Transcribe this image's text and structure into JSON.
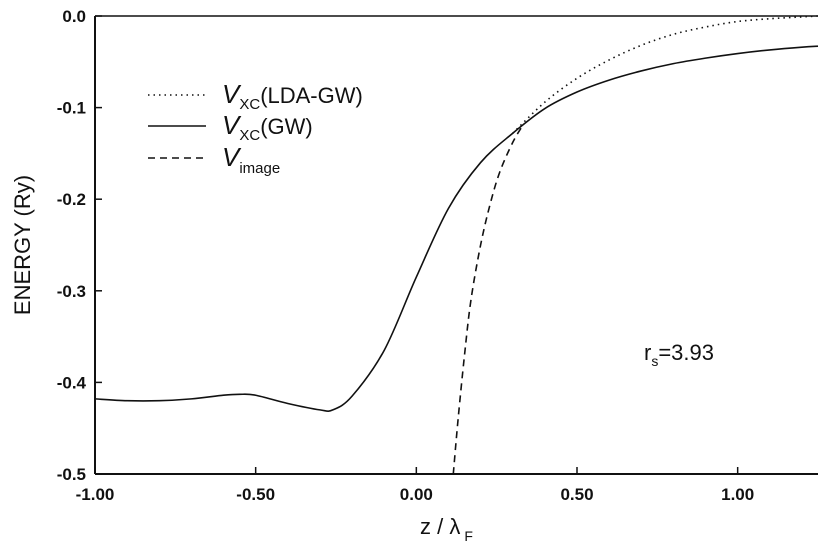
{
  "chart_data": {
    "type": "line",
    "xlabel": {
      "main": "z / λ",
      "sub": "F"
    },
    "ylabel": "ENERGY (Ry)",
    "xlim": [
      -1.0,
      1.25
    ],
    "ylim": [
      -0.5,
      0.0
    ],
    "x_ticks": [
      -1.0,
      -0.5,
      0.0,
      0.5,
      1.0
    ],
    "x_tick_labels": [
      "-1.00",
      "-0.50",
      "0.00",
      "0.50",
      "1.00"
    ],
    "y_ticks": [
      0.0,
      -0.1,
      -0.2,
      -0.3,
      -0.4,
      -0.5
    ],
    "y_tick_labels": [
      "0.0",
      "-0.1",
      "-0.2",
      "-0.3",
      "-0.4",
      "-0.5"
    ],
    "grid": false,
    "legend_position": "top-left",
    "annotation": {
      "main": "r",
      "sub": "s",
      "rest": "=3.93"
    },
    "series": [
      {
        "name": {
          "main": "V",
          "sub": "XC",
          "rest": "(LDA-GW)"
        },
        "style": "dotted",
        "x": [
          0.3,
          0.4,
          0.5,
          0.6,
          0.7,
          0.8,
          0.9,
          1.0,
          1.1,
          1.2,
          1.25
        ],
        "y": [
          -0.128,
          -0.094,
          -0.068,
          -0.048,
          -0.032,
          -0.02,
          -0.012,
          -0.006,
          -0.003,
          -0.001,
          0.0
        ]
      },
      {
        "name": {
          "main": "V",
          "sub": "XC",
          "rest": "(GW)"
        },
        "style": "solid",
        "x": [
          -1.0,
          -0.9,
          -0.8,
          -0.7,
          -0.6,
          -0.55,
          -0.5,
          -0.4,
          -0.3,
          -0.26,
          -0.2,
          -0.1,
          0.0,
          0.1,
          0.2,
          0.3,
          0.4,
          0.5,
          0.6,
          0.7,
          0.8,
          0.9,
          1.0,
          1.1,
          1.2,
          1.25
        ],
        "y": [
          -0.418,
          -0.42,
          -0.42,
          -0.418,
          -0.414,
          -0.413,
          -0.414,
          -0.423,
          -0.43,
          -0.43,
          -0.415,
          -0.365,
          -0.285,
          -0.21,
          -0.16,
          -0.128,
          -0.101,
          -0.083,
          -0.07,
          -0.06,
          -0.052,
          -0.046,
          -0.041,
          -0.037,
          -0.034,
          -0.033
        ]
      },
      {
        "name": {
          "main": "V",
          "sub": "image",
          "rest": ""
        },
        "style": "dashed",
        "x": [
          0.115,
          0.13,
          0.15,
          0.17,
          0.2,
          0.23,
          0.26,
          0.3,
          0.33
        ],
        "y": [
          -0.5,
          -0.44,
          -0.37,
          -0.31,
          -0.25,
          -0.205,
          -0.17,
          -0.138,
          -0.12
        ]
      }
    ]
  }
}
